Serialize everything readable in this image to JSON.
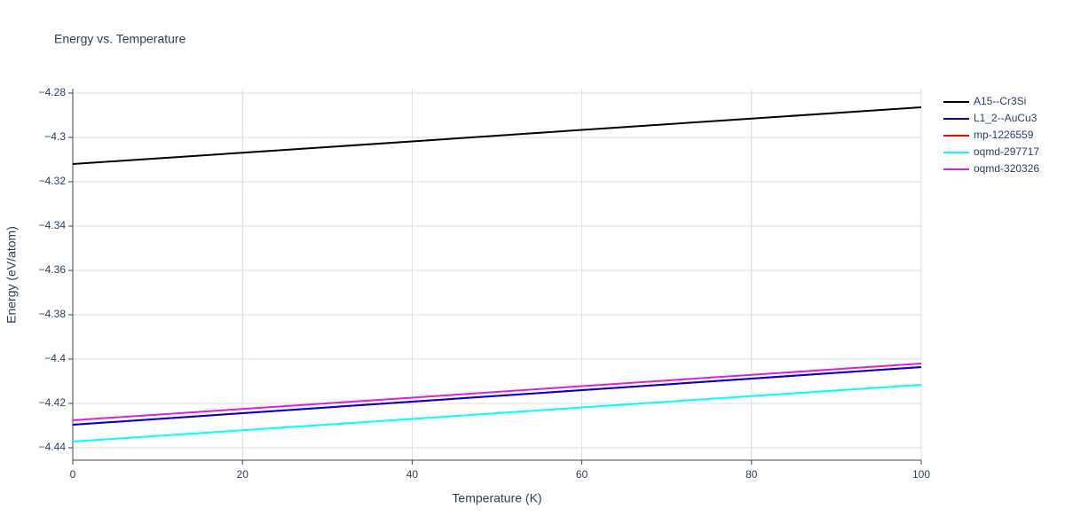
{
  "chart_data": {
    "type": "line",
    "title": "Energy vs. Temperature",
    "x_label": "Temperature (K)",
    "y_label": "Energy (eV/atom)",
    "x": [
      0,
      20,
      40,
      60,
      80,
      100
    ],
    "series": [
      {
        "name": "A15--Cr3Si",
        "color": "#000000",
        "values": [
          -4.312,
          -4.3069,
          -4.3018,
          -4.2966,
          -4.2915,
          -4.2864
        ]
      },
      {
        "name": "L1_2--AuCu3",
        "color": "#0000dd",
        "values": [
          -4.4296,
          -4.4244,
          -4.4192,
          -4.414,
          -4.4088,
          -4.4036
        ]
      },
      {
        "name": "mp-1226559",
        "color": "#ff0000",
        "values": [
          -4.4296,
          -4.4244,
          -4.4192,
          -4.414,
          -4.4088,
          -4.4036
        ]
      },
      {
        "name": "oqmd-297717",
        "color": "#00ffff",
        "values": [
          -4.4372,
          -4.4321,
          -4.427,
          -4.4218,
          -4.4167,
          -4.4116
        ]
      },
      {
        "name": "oqmd-320326",
        "color": "#e01ee0",
        "values": [
          -4.4276,
          -4.4225,
          -4.4174,
          -4.4122,
          -4.4071,
          -4.402
        ]
      }
    ],
    "xlim": [
      0,
      100
    ],
    "xticks": [
      0,
      20,
      40,
      60,
      80,
      100
    ],
    "ylim": [
      -4.4456,
      -4.278
    ],
    "yticks": [
      {
        "value": -4.44,
        "label": "−4.44"
      },
      {
        "value": -4.42,
        "label": "−4.42"
      },
      {
        "value": -4.4,
        "label": "−4.4"
      },
      {
        "value": -4.38,
        "label": "−4.38"
      },
      {
        "value": -4.36,
        "label": "−4.36"
      },
      {
        "value": -4.34,
        "label": "−4.34"
      },
      {
        "value": -4.32,
        "label": "−4.32"
      },
      {
        "value": -4.3,
        "label": "−4.3"
      },
      {
        "value": -4.28,
        "label": "−4.28"
      }
    ],
    "grid": true,
    "legend": "right"
  }
}
